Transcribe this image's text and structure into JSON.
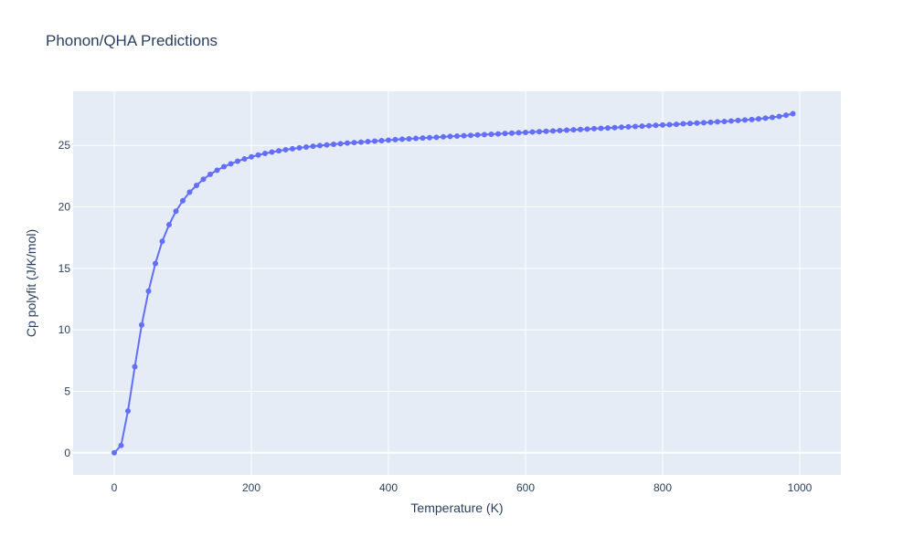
{
  "chart_data": {
    "type": "line",
    "title": "Phonon/QHA Predictions",
    "xlabel": "Temperature (K)",
    "ylabel": "Cp polyfit (J/K/mol)",
    "xlim": [
      -60,
      1060
    ],
    "ylim": [
      -1.8,
      29.4
    ],
    "xticks": [
      0,
      200,
      400,
      600,
      800,
      1000
    ],
    "yticks": [
      0,
      5,
      10,
      15,
      20,
      25
    ],
    "grid": true,
    "series": [
      {
        "color": "#636efa",
        "mode": "lines+markers",
        "x": [
          0,
          10,
          20,
          30,
          40,
          50,
          60,
          70,
          80,
          90,
          100,
          110,
          120,
          130,
          140,
          150,
          160,
          170,
          180,
          190,
          200,
          210,
          220,
          230,
          240,
          250,
          260,
          270,
          280,
          290,
          300,
          310,
          320,
          330,
          340,
          350,
          360,
          370,
          380,
          390,
          400,
          410,
          420,
          430,
          440,
          450,
          460,
          470,
          480,
          490,
          500,
          510,
          520,
          530,
          540,
          550,
          560,
          570,
          580,
          590,
          600,
          610,
          620,
          630,
          640,
          650,
          660,
          670,
          680,
          690,
          700,
          710,
          720,
          730,
          740,
          750,
          760,
          770,
          780,
          790,
          800,
          810,
          820,
          830,
          840,
          850,
          860,
          870,
          880,
          890,
          900,
          910,
          920,
          930,
          940,
          950,
          960,
          970,
          980,
          990
        ],
        "y": [
          0,
          0.6,
          3.4,
          7.0,
          10.4,
          13.15,
          15.4,
          17.2,
          18.55,
          19.65,
          20.5,
          21.2,
          21.75,
          22.25,
          22.65,
          22.98,
          23.27,
          23.5,
          23.72,
          23.9,
          24.07,
          24.22,
          24.35,
          24.46,
          24.56,
          24.65,
          24.73,
          24.8,
          24.87,
          24.93,
          24.99,
          25.04,
          25.09,
          25.14,
          25.19,
          25.23,
          25.27,
          25.31,
          25.35,
          25.39,
          25.43,
          25.47,
          25.51,
          25.54,
          25.57,
          25.6,
          25.63,
          25.66,
          25.7,
          25.73,
          25.76,
          25.79,
          25.82,
          25.85,
          25.88,
          25.91,
          25.94,
          25.97,
          26.0,
          26.03,
          26.06,
          26.09,
          26.12,
          26.15,
          26.18,
          26.21,
          26.24,
          26.27,
          26.3,
          26.33,
          26.36,
          26.39,
          26.42,
          26.45,
          26.48,
          26.51,
          26.54,
          26.57,
          26.6,
          26.63,
          26.66,
          26.69,
          26.72,
          26.76,
          26.79,
          26.82,
          26.85,
          26.88,
          26.92,
          26.95,
          26.99,
          27.03,
          27.07,
          27.11,
          27.16,
          27.22,
          27.28,
          27.36,
          27.46,
          27.58
        ]
      }
    ]
  }
}
